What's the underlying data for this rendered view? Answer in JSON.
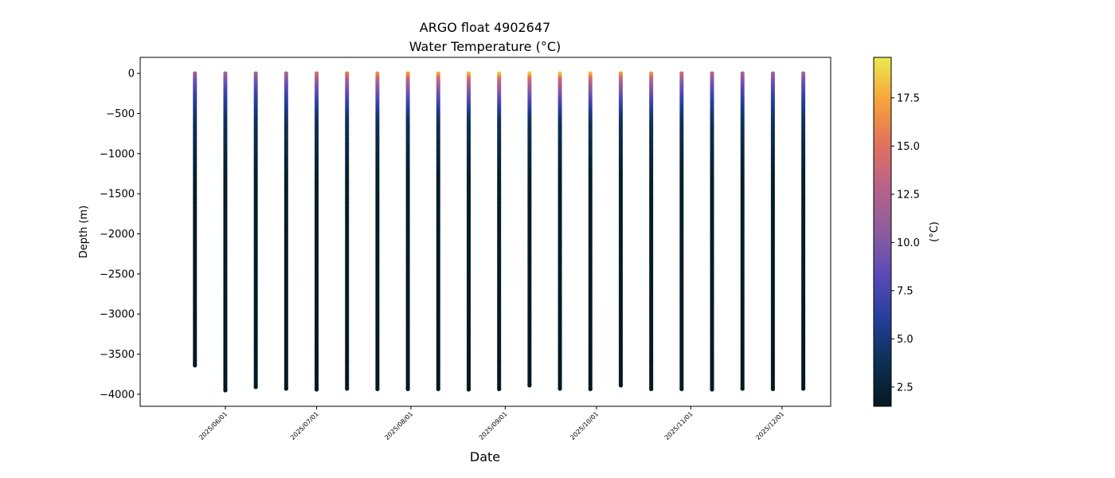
{
  "chart_data": {
    "type": "scatter",
    "title": "ARGO float 4902647",
    "subtitle": "Water Temperature (°C)",
    "xlabel": "Date",
    "ylabel": "Depth (m)",
    "ylim": [
      -4150,
      200
    ],
    "xlim": [
      "2025-05-04",
      "2025-12-17"
    ],
    "yticks": [
      0,
      -500,
      -1000,
      -1500,
      -2000,
      -2500,
      -3000,
      -3500,
      -4000
    ],
    "ytick_labels": [
      "0",
      "−500",
      "−1000",
      "−1500",
      "−2000",
      "−2500",
      "−3000",
      "−3500",
      "−4000"
    ],
    "xticks": [
      "2025-06-01",
      "2025-07-01",
      "2025-08-01",
      "2025-09-01",
      "2025-10-01",
      "2025-11-01",
      "2025-12-01"
    ],
    "xtick_labels": [
      "2025/06/01",
      "2025/07/01",
      "2025/08/01",
      "2025/09/01",
      "2025/10/01",
      "2025/11/01",
      "2025/12/01"
    ],
    "colorbar": {
      "label": "(°C)",
      "range": [
        1.5,
        19.6
      ],
      "ticks": [
        2.5,
        5.0,
        7.5,
        10.0,
        12.5,
        15.0,
        17.5
      ],
      "tick_labels": [
        "2.5",
        "5.0",
        "7.5",
        "10.0",
        "12.5",
        "15.0",
        "17.5"
      ],
      "colormap": [
        "#04181f",
        "#0e2f53",
        "#233e9a",
        "#5a4ab8",
        "#8c5d9e",
        "#b8628a",
        "#e0715e",
        "#f7a23a",
        "#e9ea4f"
      ]
    },
    "profiles": [
      {
        "date": "2025-05-22",
        "max_depth": -3640,
        "surface_temp": 11.5
      },
      {
        "date": "2025-06-01",
        "max_depth": -3950,
        "surface_temp": 12.0
      },
      {
        "date": "2025-06-11",
        "max_depth": -3910,
        "surface_temp": 12.0
      },
      {
        "date": "2025-06-21",
        "max_depth": -3930,
        "surface_temp": 12.5
      },
      {
        "date": "2025-07-01",
        "max_depth": -3940,
        "surface_temp": 14.5
      },
      {
        "date": "2025-07-11",
        "max_depth": -3930,
        "surface_temp": 15.5
      },
      {
        "date": "2025-07-21",
        "max_depth": -3935,
        "surface_temp": 16.5
      },
      {
        "date": "2025-07-31",
        "max_depth": -3935,
        "surface_temp": 17.0
      },
      {
        "date": "2025-08-10",
        "max_depth": -3935,
        "surface_temp": 17.5
      },
      {
        "date": "2025-08-20",
        "max_depth": -3940,
        "surface_temp": 18.0
      },
      {
        "date": "2025-08-30",
        "max_depth": -3935,
        "surface_temp": 18.5
      },
      {
        "date": "2025-09-09",
        "max_depth": -3890,
        "surface_temp": 18.5
      },
      {
        "date": "2025-09-19",
        "max_depth": -3930,
        "surface_temp": 18.5
      },
      {
        "date": "2025-09-29",
        "max_depth": -3935,
        "surface_temp": 18.0
      },
      {
        "date": "2025-10-09",
        "max_depth": -3890,
        "surface_temp": 17.0
      },
      {
        "date": "2025-10-19",
        "max_depth": -3935,
        "surface_temp": 16.5
      },
      {
        "date": "2025-10-29",
        "max_depth": -3935,
        "surface_temp": 14.0
      },
      {
        "date": "2025-11-08",
        "max_depth": -3940,
        "surface_temp": 13.0
      },
      {
        "date": "2025-11-18",
        "max_depth": -3930,
        "surface_temp": 12.5
      },
      {
        "date": "2025-11-28",
        "max_depth": -3935,
        "surface_temp": 12.0
      },
      {
        "date": "2025-12-08",
        "max_depth": -3930,
        "surface_temp": 12.0
      }
    ]
  }
}
